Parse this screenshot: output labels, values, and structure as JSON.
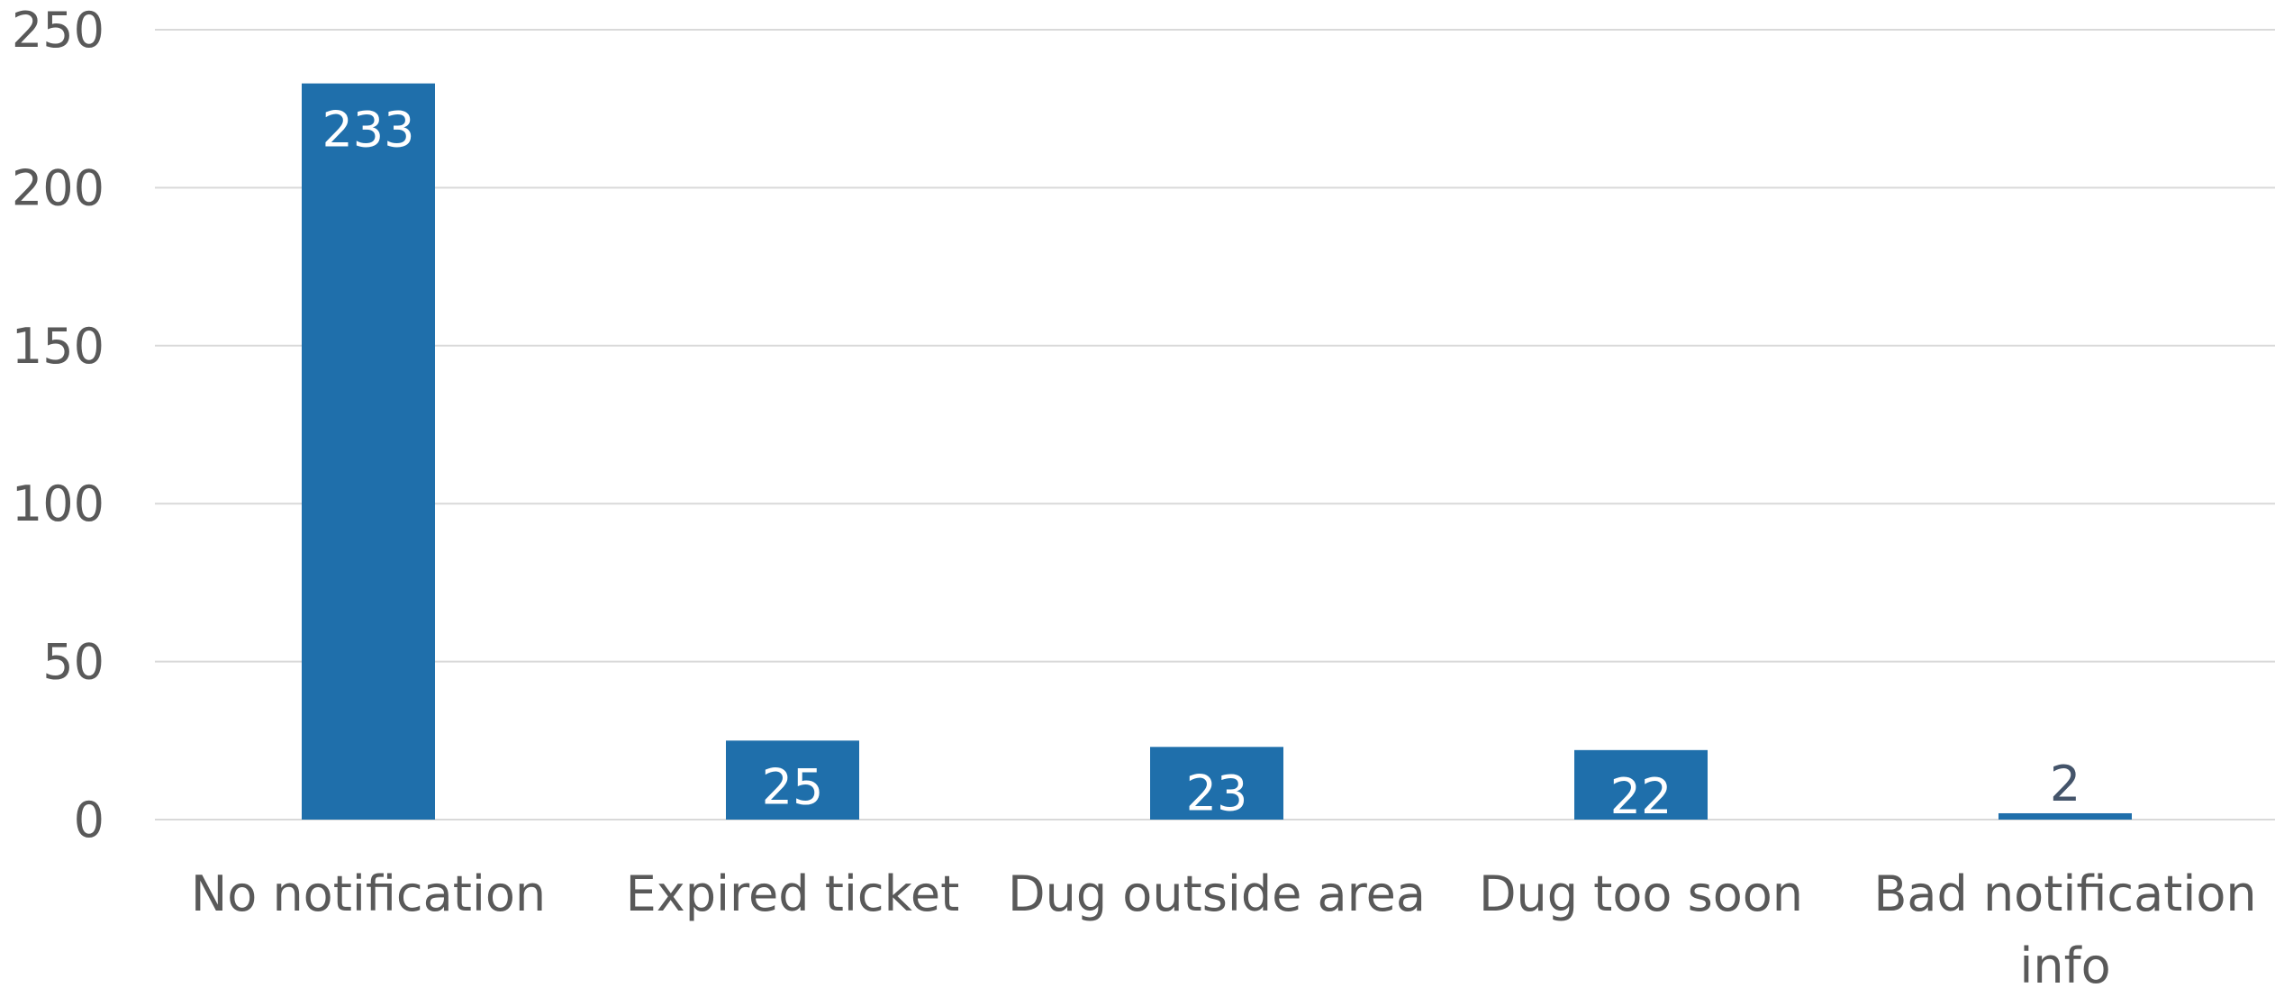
{
  "chart_data": {
    "type": "bar",
    "categories": [
      [
        "No notification"
      ],
      [
        "Expired ticket"
      ],
      [
        "Dug outside area"
      ],
      [
        "Dug too soon"
      ],
      [
        "Bad notification",
        "info"
      ]
    ],
    "values": [
      233,
      25,
      23,
      22,
      2
    ],
    "data_labels": [
      "233",
      "25",
      "23",
      "22",
      "2"
    ],
    "ylim": [
      0,
      250
    ],
    "yticks": [
      0,
      50,
      100,
      150,
      200,
      250
    ],
    "grid": true,
    "legend": "none",
    "colors": {
      "bar": "#1f6fab",
      "label_inside": "#ffffff",
      "label_outside": "#44546a",
      "grid": "#d9d9d9",
      "text": "#595959"
    }
  }
}
